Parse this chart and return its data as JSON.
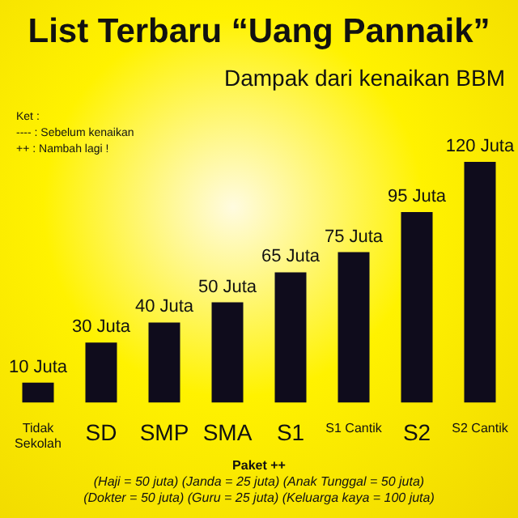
{
  "chart_data": {
    "type": "bar",
    "title": "List Terbaru “Uang Pannaik”",
    "subtitle": "Dampak dari kenaikan BBM",
    "categories": [
      "Tidak Sekolah",
      "SD",
      "SMP",
      "SMA",
      "S1",
      "S1 Cantik",
      "S2",
      "S2 Cantik"
    ],
    "values": [
      10,
      30,
      40,
      50,
      65,
      75,
      95,
      120
    ],
    "value_labels": [
      "10 Juta",
      "30 Juta",
      "40 Juta",
      "50 Juta",
      "65 Juta",
      "75 Juta",
      "95 Juta",
      "120 Juta"
    ],
    "color": "#0f0c1c",
    "annotations": [
      "Ket :",
      "---- : Sebelum kenaikan",
      "++ : Nambah lagi !",
      "Paket ++",
      "(Haji = 50 juta) (Janda = 25 juta) (Anak Tunggal = 50 juta)",
      "(Dokter = 50 juta) (Guru = 25 juta) (Keluarga kaya = 100 juta)"
    ]
  }
}
